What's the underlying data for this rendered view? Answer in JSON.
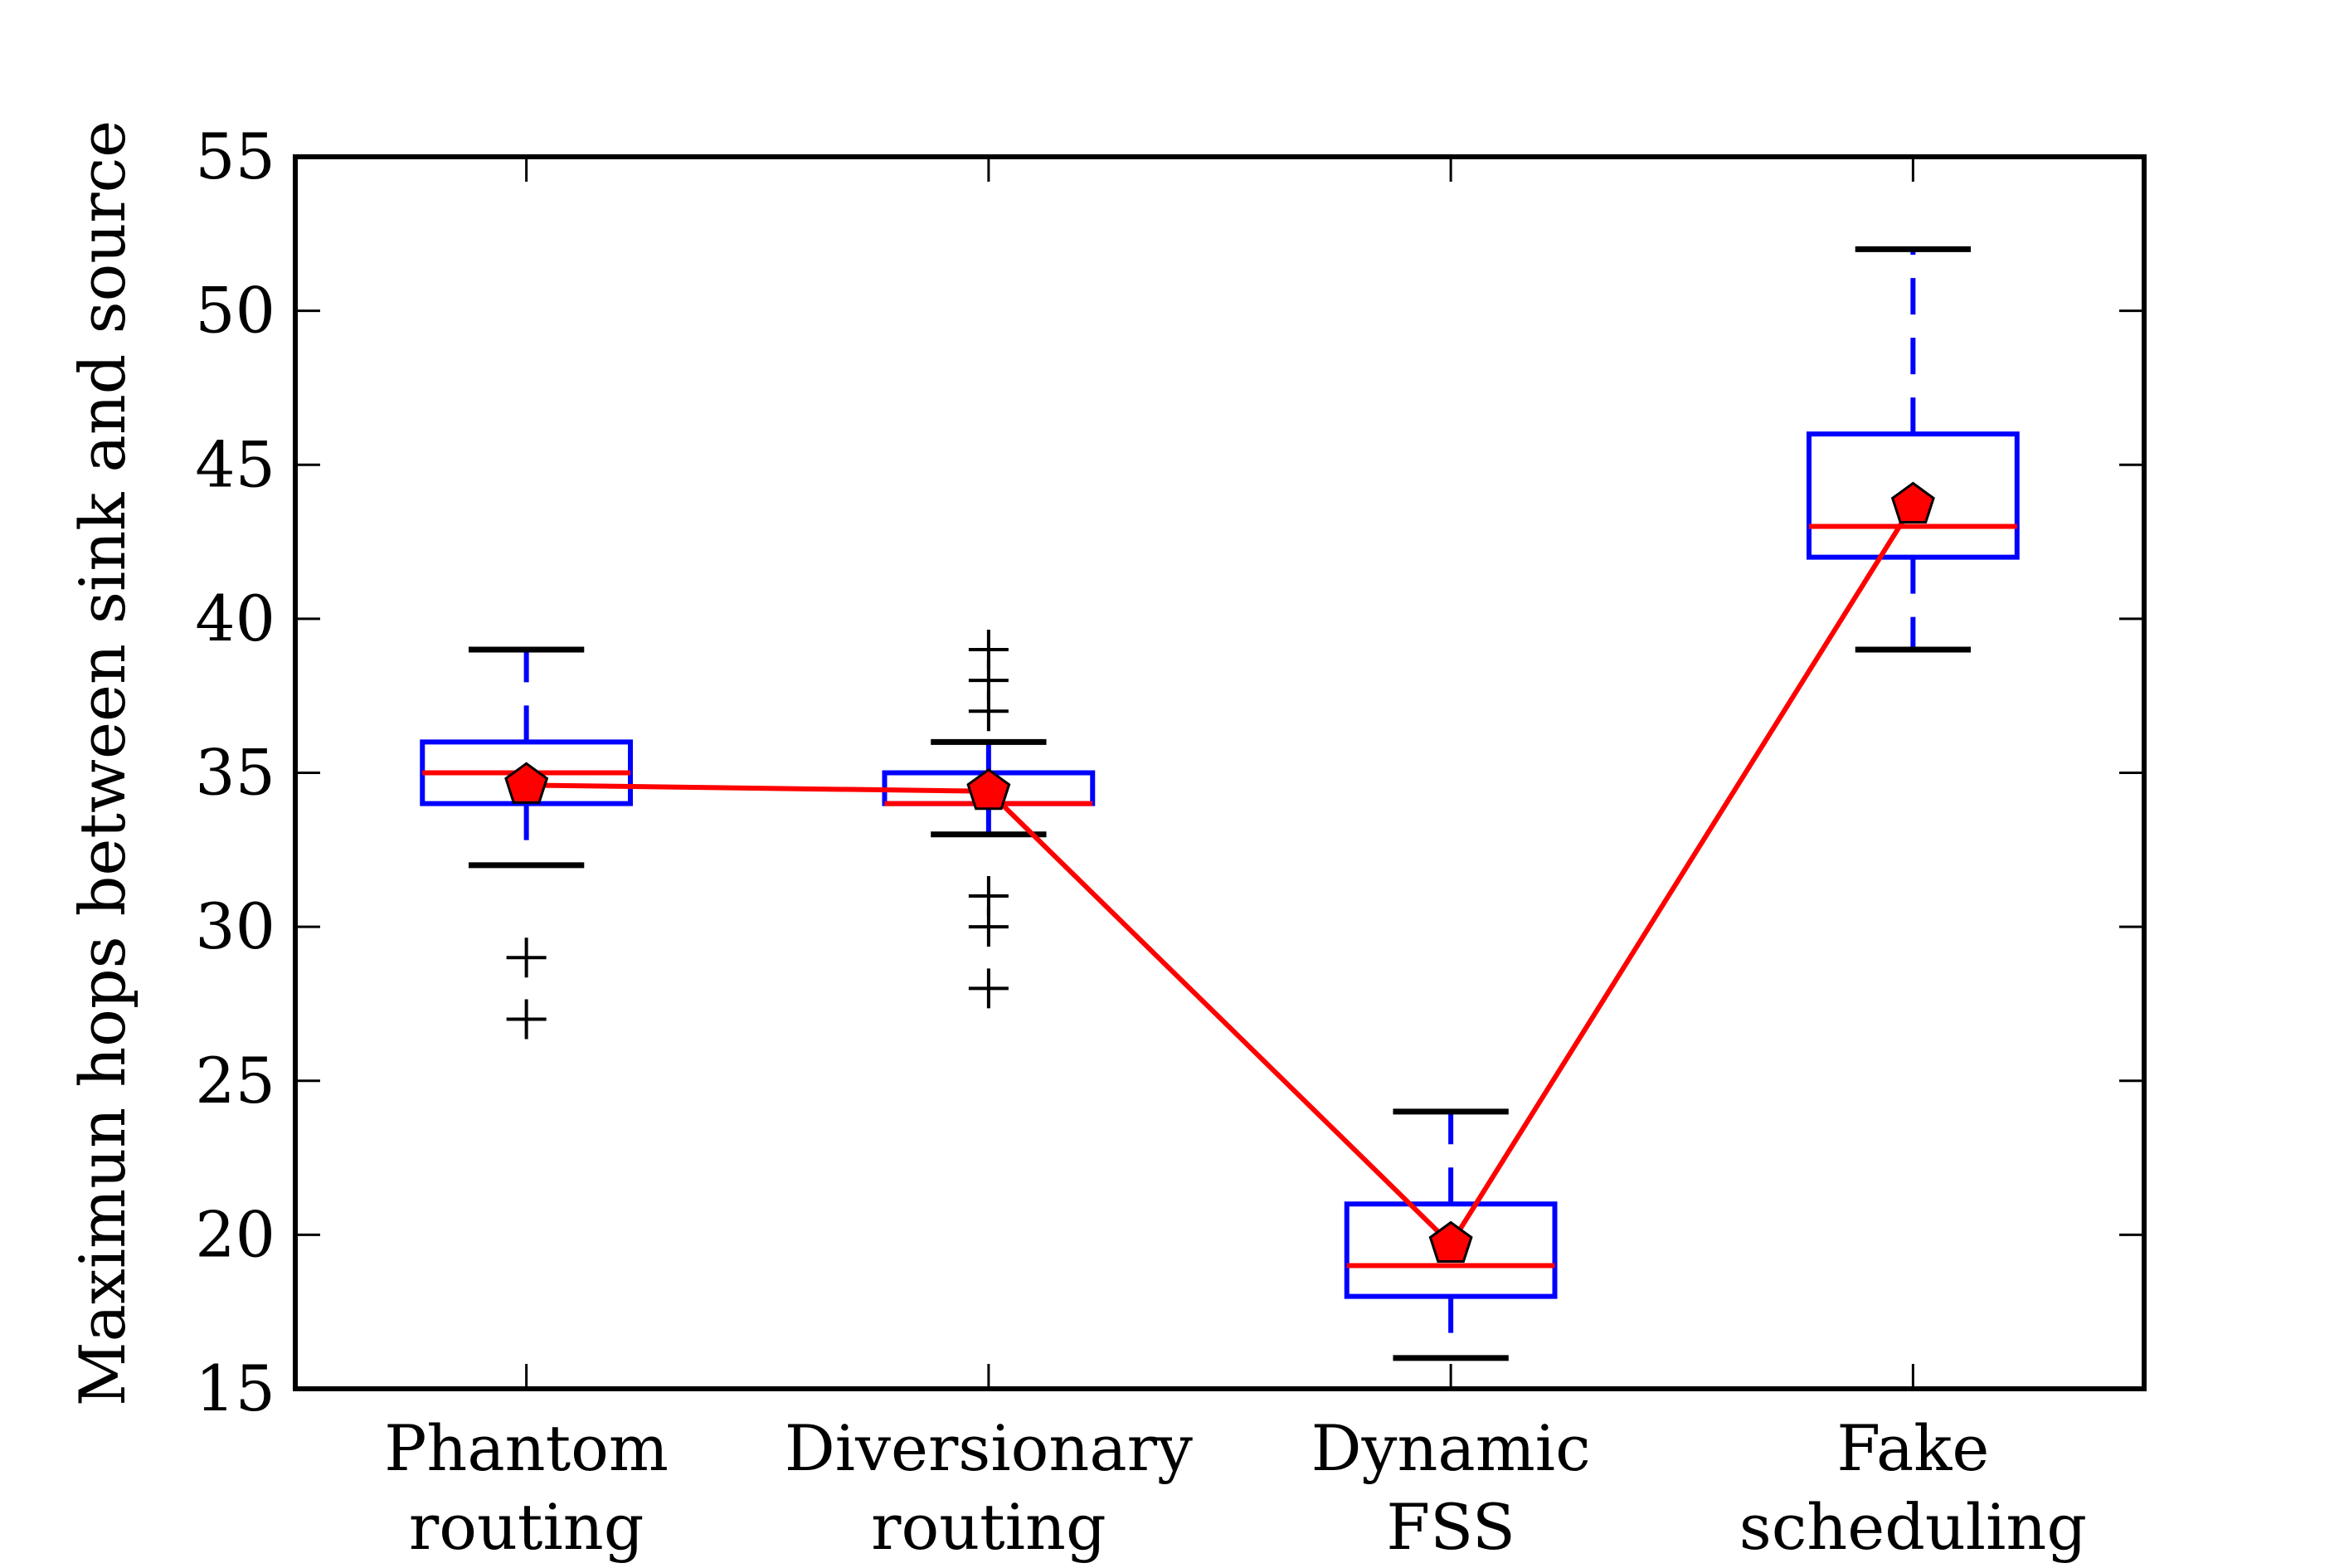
{
  "chart_data": {
    "type": "box",
    "title": "",
    "xlabel": "",
    "ylabel": "Maximun hops between sink and source",
    "ylim": [
      15,
      55
    ],
    "yticks": [
      15,
      20,
      25,
      30,
      35,
      40,
      45,
      50,
      55
    ],
    "ytick_labels": [
      "15",
      "20",
      "25",
      "30",
      "35",
      "40",
      "45",
      "50",
      "55"
    ],
    "grid": false,
    "legend": "none",
    "colors": {
      "box": "#0000ff",
      "median": "#ff0000",
      "mean_line": "#ff0000",
      "mean_marker_fill": "#ff0000",
      "whisker_cap": "#000000",
      "flier": "#000000",
      "frame": "#000000"
    },
    "categories": [
      [
        "Phantom",
        "routing"
      ],
      [
        "Diversionary",
        "routing"
      ],
      [
        "Dynamic",
        "FSS"
      ],
      [
        "Fake",
        "scheduling"
      ]
    ],
    "boxes": [
      {
        "whisker_low": 32,
        "q1": 34,
        "median": 35,
        "q3": 36,
        "whisker_high": 39,
        "mean": 34.6,
        "fliers": [
          29,
          27
        ]
      },
      {
        "whisker_low": 33,
        "q1": 34,
        "median": 34,
        "q3": 35,
        "whisker_high": 36,
        "mean": 34.4,
        "fliers": [
          39,
          38,
          37,
          31,
          30,
          28
        ]
      },
      {
        "whisker_low": 16,
        "q1": 18,
        "median": 19,
        "q3": 21,
        "whisker_high": 24,
        "mean": 19.7,
        "fliers": []
      },
      {
        "whisker_low": 39,
        "q1": 42,
        "median": 43,
        "q3": 46,
        "whisker_high": 52,
        "mean": 43.7,
        "fliers": []
      }
    ],
    "mean_series": [
      34.6,
      34.4,
      19.7,
      43.7
    ]
  }
}
